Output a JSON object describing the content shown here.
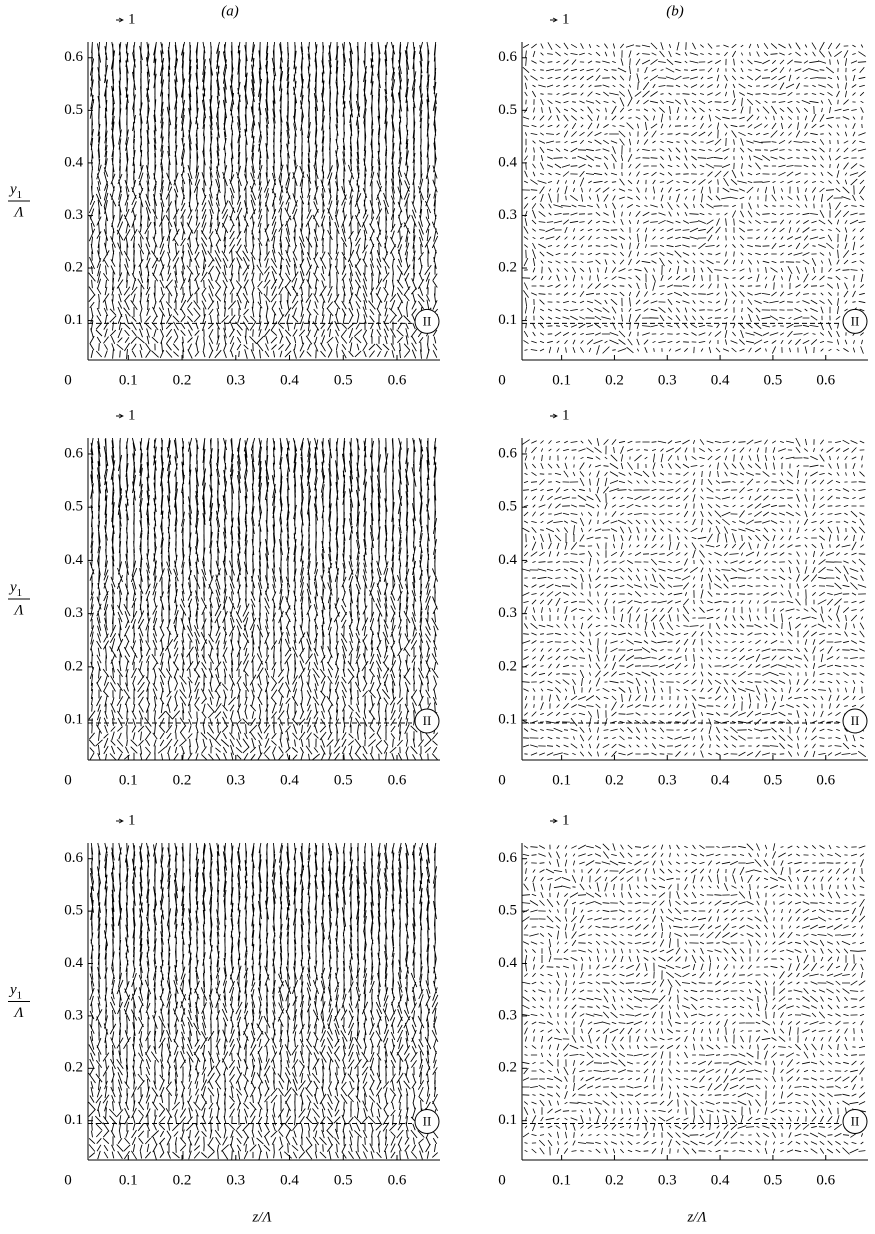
{
  "axes": {
    "xlim": [
      0.025,
      0.68
    ],
    "xticks": [
      0.1,
      0.2,
      0.3,
      0.4,
      0.5,
      0.6
    ],
    "ylim": [
      0.025,
      0.63
    ],
    "yticks": [
      0.1,
      0.2,
      0.3,
      0.4,
      0.5,
      0.6
    ],
    "origin_label": "0"
  },
  "column_labels": [
    "(a)",
    "(b)"
  ],
  "y_label": {
    "symbol": "y",
    "subscript": "1",
    "denominator": "Λ"
  },
  "x_label": "z/Λ",
  "scale_label": "1",
  "region_label": "II"
}
